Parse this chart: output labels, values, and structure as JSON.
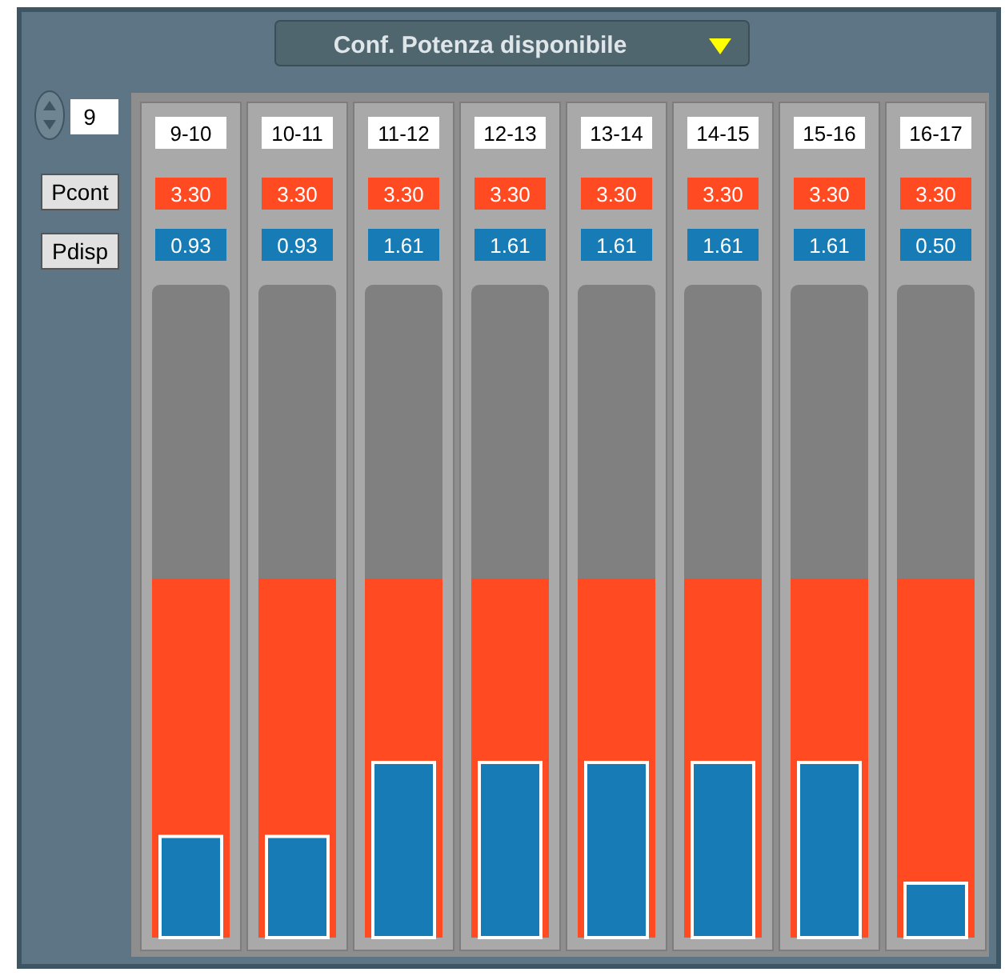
{
  "chart_data": {
    "type": "bar",
    "title": "Conf. Potenza disponibile",
    "categories": [
      "9-10",
      "10-11",
      "11-12",
      "12-13",
      "13-14",
      "14-15",
      "15-16",
      "16-17"
    ],
    "series": [
      {
        "name": "Pcont",
        "color": "#ff4a22",
        "values": [
          3.3,
          3.3,
          3.3,
          3.3,
          3.3,
          3.3,
          3.3,
          3.3
        ],
        "value_labels": [
          "3.30",
          "3.30",
          "3.30",
          "3.30",
          "3.30",
          "3.30",
          "3.30",
          "3.30"
        ]
      },
      {
        "name": "Pdisp",
        "color": "#177bb5",
        "values": [
          0.93,
          0.93,
          1.61,
          1.61,
          1.61,
          1.61,
          1.61,
          0.5
        ],
        "value_labels": [
          "0.93",
          "0.93",
          "1.61",
          "1.61",
          "1.61",
          "1.61",
          "1.61",
          "0.50"
        ]
      }
    ],
    "ylim": [
      0,
      6
    ],
    "legend": "left",
    "annotations": [
      "9"
    ]
  }
}
